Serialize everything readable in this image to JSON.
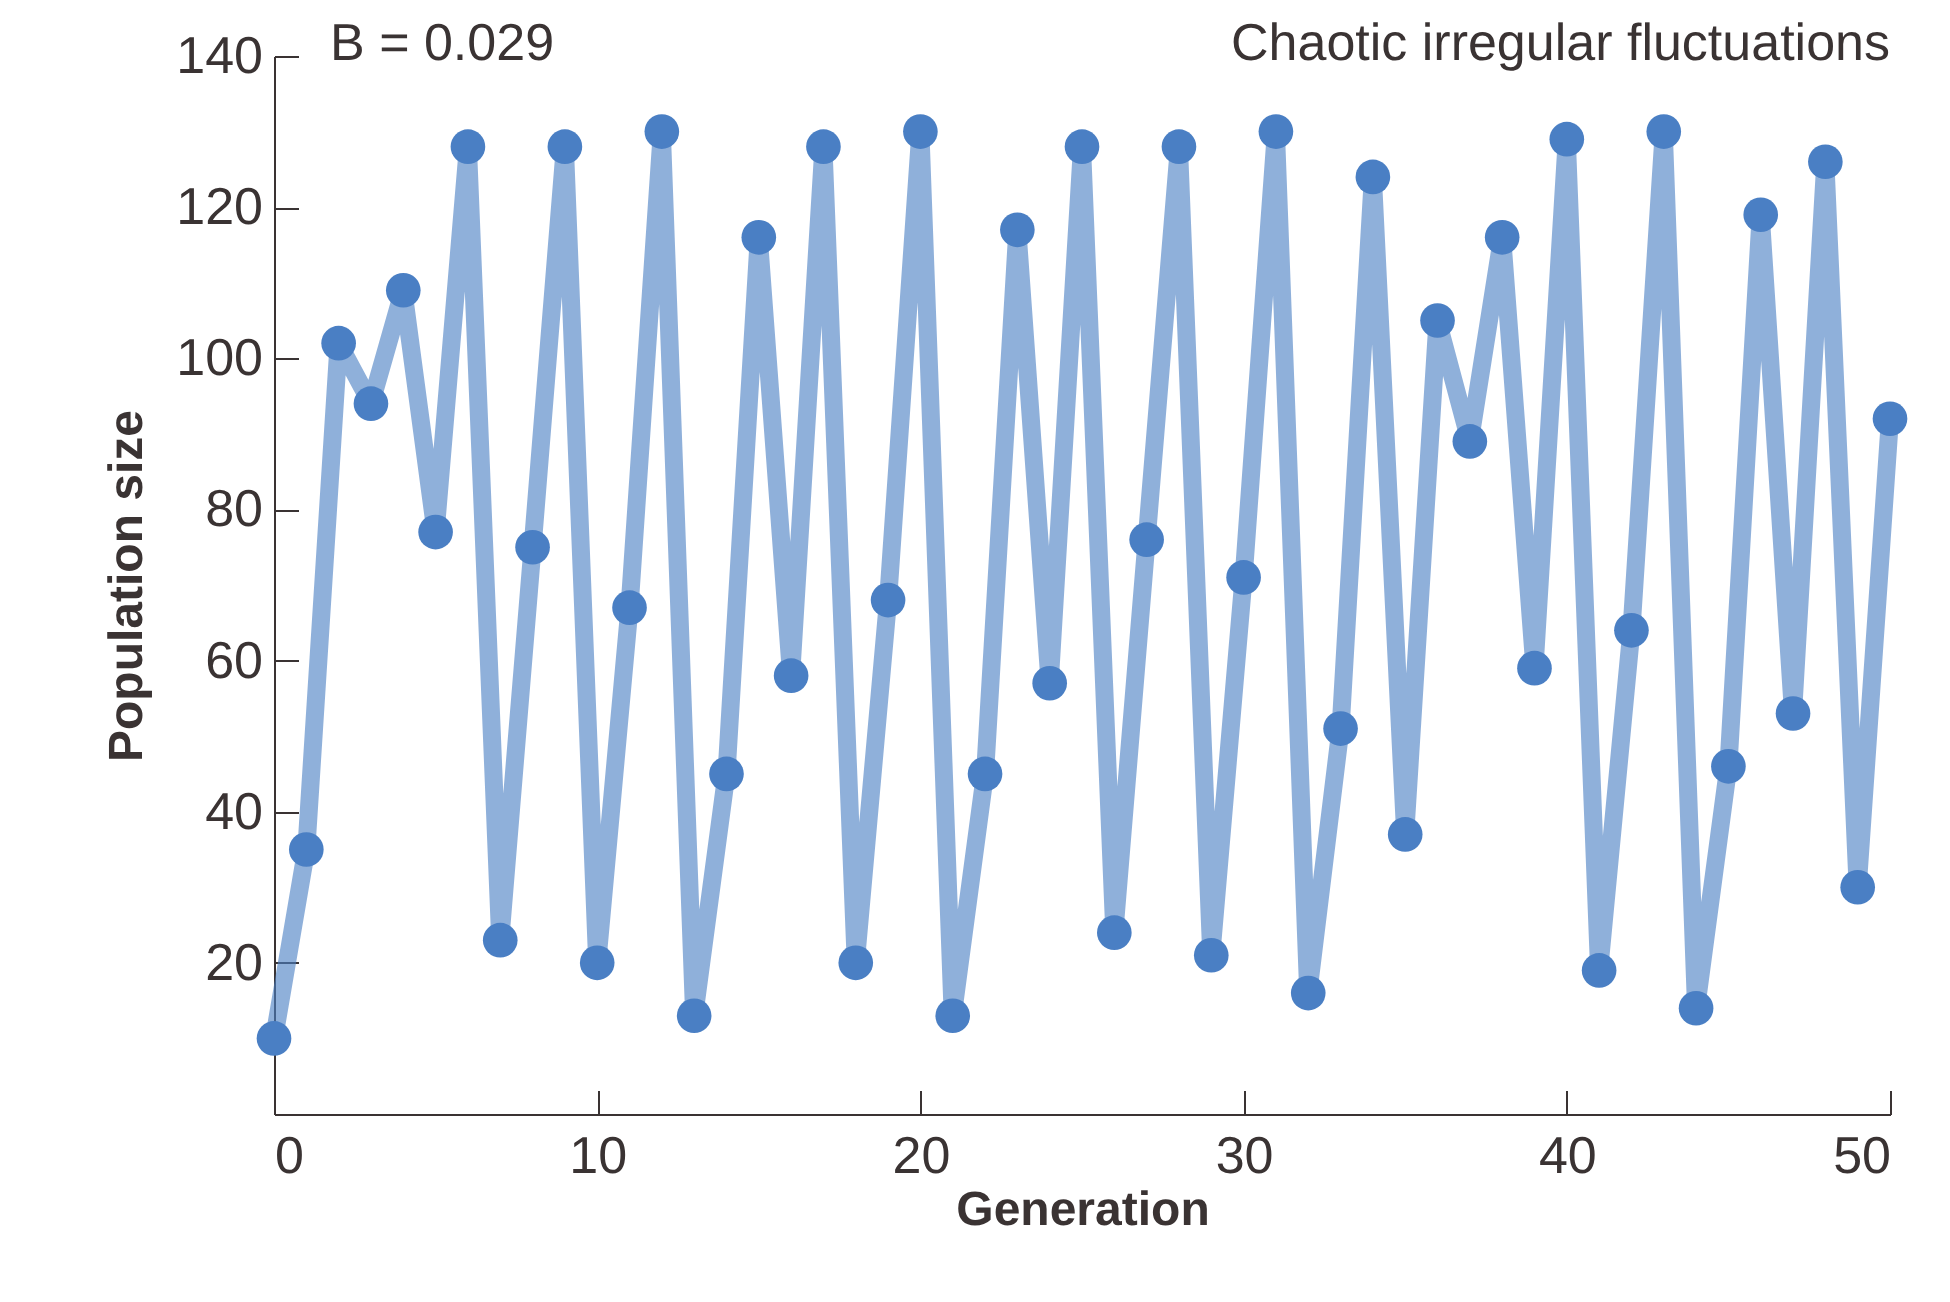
{
  "chart_data": {
    "type": "line",
    "xlabel": "Generation",
    "ylabel": "Population size",
    "annotations": [
      "B = 0.029",
      "Chaotic irregular fluctuations"
    ],
    "x": [
      0,
      1,
      2,
      3,
      4,
      5,
      6,
      7,
      8,
      9,
      10,
      11,
      12,
      13,
      14,
      15,
      16,
      17,
      18,
      19,
      20,
      21,
      22,
      23,
      24,
      25,
      26,
      27,
      28,
      29,
      30,
      31,
      32,
      33,
      34,
      35,
      36,
      37,
      38,
      39,
      40,
      41,
      42,
      43,
      44,
      45,
      46,
      47,
      48,
      49,
      50
    ],
    "series": [
      {
        "color": "#4a7fc4",
        "values": [
          10,
          35,
          102,
          94,
          109,
          77,
          128,
          23,
          75,
          128,
          20,
          67,
          130,
          13,
          45,
          116,
          58,
          128,
          20,
          68,
          130,
          13,
          45,
          117,
          57,
          128,
          24,
          76,
          128,
          21,
          71,
          130,
          16,
          51,
          124,
          37,
          105,
          89,
          116,
          59,
          129,
          19,
          64,
          130,
          14,
          46,
          119,
          53,
          126,
          30,
          92
        ]
      }
    ],
    "xlim": [
      0,
      50
    ],
    "xticks": [
      0,
      10,
      20,
      30,
      40,
      50
    ],
    "ylim": [
      0,
      140
    ],
    "yticks": [
      20,
      40,
      60,
      80,
      100,
      120,
      140
    ],
    "grid": false,
    "marker": "circle",
    "line_style": "solid"
  }
}
